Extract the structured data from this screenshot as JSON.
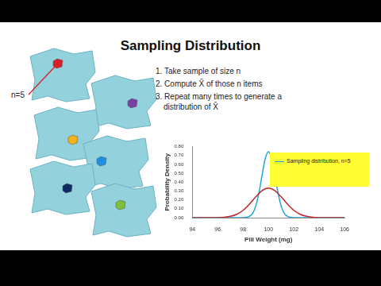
{
  "slide": {
    "title": "Sampling Distribution",
    "sample_label": "n=5",
    "steps": [
      "1. Take sample of size n",
      "2. Compute X̄ of those n items",
      "3. Repeat many times to generate a distribution of X̄"
    ]
  },
  "chart_data": {
    "type": "line",
    "x_label": "Pill Weight (mg)",
    "y_label": "Probability Density",
    "xlim": [
      94,
      106
    ],
    "xticks": [
      94,
      96,
      98,
      100,
      102,
      104,
      106
    ],
    "ylim": [
      0,
      0.8
    ],
    "yticks": [
      {
        "value": 0,
        "label": "0.00"
      },
      {
        "value": 0.1,
        "label": "0.10"
      },
      {
        "value": 0.2,
        "label": "0.20"
      },
      {
        "value": 0.3,
        "label": "0.30"
      },
      {
        "value": 0.4,
        "label": "0.40"
      },
      {
        "value": 0.5,
        "label": "0.50"
      },
      {
        "value": 0.6,
        "label": "0.60"
      },
      {
        "value": 0.7,
        "label": "0.70"
      },
      {
        "value": 0.8,
        "label": "0.80"
      }
    ],
    "grid": false,
    "legend": "upper right",
    "series": [
      {
        "color": "#c0282d",
        "x": [
          94,
          94.5,
          95,
          95.5,
          96,
          96.5,
          97,
          97.5,
          98,
          98.5,
          99,
          99.5,
          100,
          100.5,
          101,
          101.5,
          102,
          102.5,
          103,
          103.5,
          104,
          104.5,
          105,
          105.5,
          106
        ],
        "values": [
          0,
          0,
          0,
          0,
          0.001,
          0.005,
          0.015,
          0.038,
          0.083,
          0.152,
          0.235,
          0.305,
          0.333,
          0.305,
          0.235,
          0.152,
          0.083,
          0.038,
          0.015,
          0.005,
          0.001,
          0,
          0,
          0,
          0
        ]
      },
      {
        "name": "Sampling distribution, n=5",
        "color": "#1ea6df",
        "x": [
          94,
          97,
          97.75,
          98,
          98.25,
          98.5,
          98.75,
          99,
          99.25,
          99.5,
          99.75,
          100,
          100.25,
          100.5,
          100.75,
          101,
          101.25,
          101.5,
          101.75,
          102,
          102.25,
          103,
          106
        ],
        "values": [
          0,
          0,
          0,
          0.001,
          0.004,
          0.015,
          0.049,
          0.131,
          0.28,
          0.482,
          0.667,
          0.743,
          0.667,
          0.482,
          0.28,
          0.131,
          0.049,
          0.015,
          0.004,
          0.001,
          0,
          0,
          0
        ]
      }
    ]
  }
}
